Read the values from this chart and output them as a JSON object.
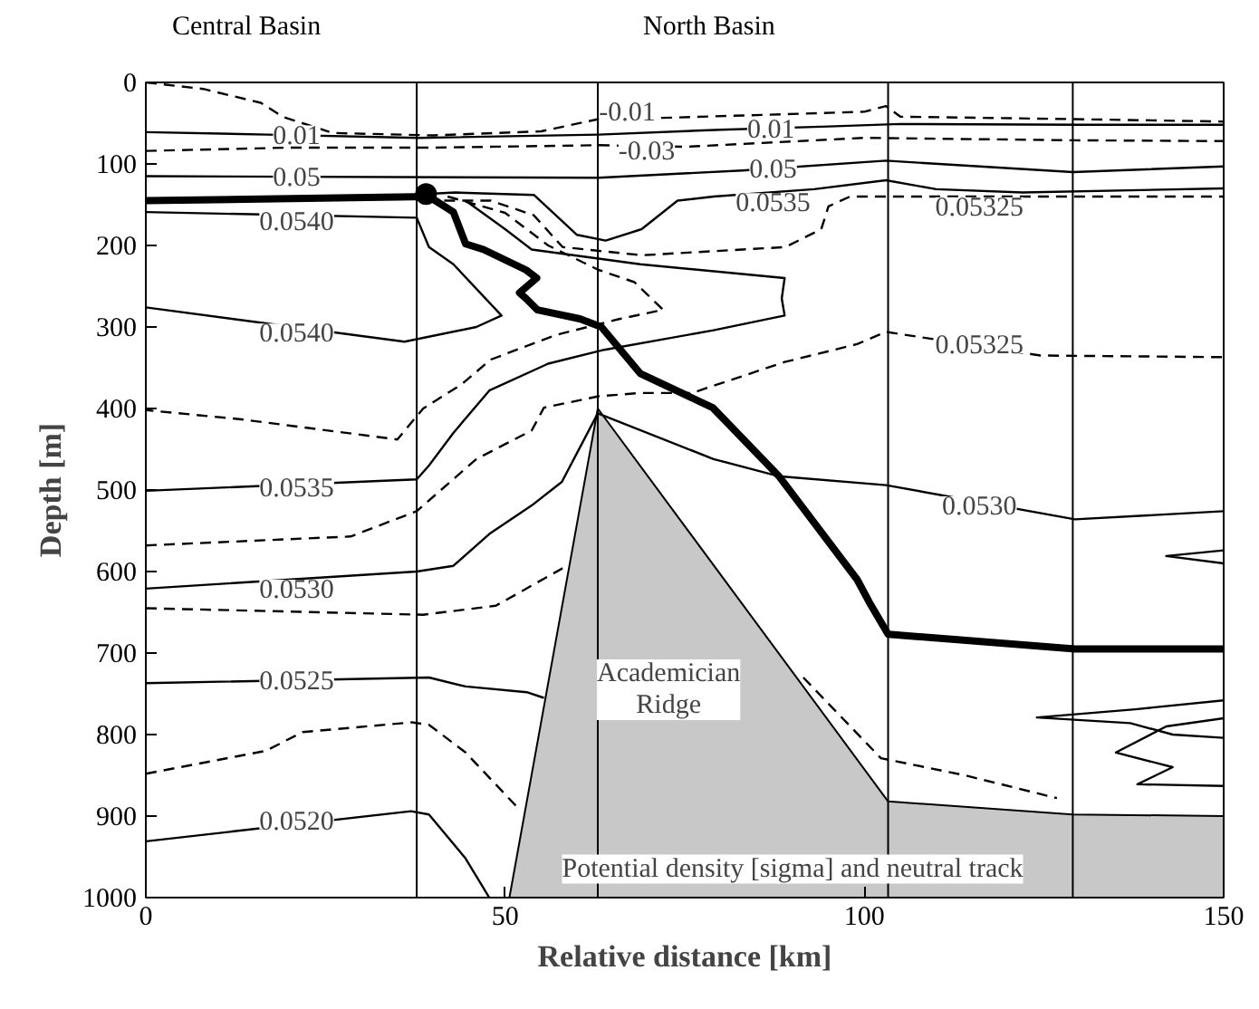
{
  "chart_data": {
    "type": "line",
    "xlabel": "Relative distance [km]",
    "ylabel": "Depth [m]",
    "xlim": [
      0,
      150
    ],
    "xticks": [
      0,
      50,
      100,
      150
    ],
    "ylim": [
      1000,
      0
    ],
    "yticks": [
      0,
      100,
      200,
      300,
      400,
      500,
      600,
      700,
      800,
      900,
      1000
    ],
    "grid": false,
    "ref_lines": [
      {
        "axis": "x",
        "value": 37.7,
        "color": "#000000"
      },
      {
        "axis": "x",
        "value": 62.9,
        "color": "#000000"
      },
      {
        "axis": "x",
        "value": 103.3,
        "color": "#000000"
      },
      {
        "axis": "x",
        "value": 129,
        "color": "#000000"
      }
    ],
    "series": [
      {
        "type": "area",
        "color": "#c8c8c8",
        "x": [
          50.6,
          62.9,
          103.3,
          129,
          150,
          150
        ],
        "values": [
          1000,
          400,
          882,
          898,
          900,
          1000
        ]
      },
      {
        "color": "#000000",
        "line_style": "dashed",
        "x": [
          0,
          8,
          16,
          19,
          26,
          40,
          55,
          63,
          74,
          100,
          103,
          105,
          129,
          150
        ],
        "values": [
          0,
          8,
          25,
          42,
          62,
          65,
          60,
          45,
          43,
          36,
          29,
          42,
          45,
          48
        ]
      },
      {
        "color": "#000000",
        "line_style": "solid",
        "x": [
          0,
          17,
          38,
          63,
          80,
          95,
          105,
          130,
          150
        ],
        "values": [
          61,
          64,
          68,
          64,
          58,
          54,
          51,
          52,
          52
        ]
      },
      {
        "color": "#000000",
        "line_style": "dashed",
        "x": [
          0,
          20,
          40,
          63,
          75,
          100,
          129,
          150
        ],
        "values": [
          84,
          80,
          80,
          77,
          79,
          68,
          71,
          72
        ]
      },
      {
        "color": "#000000",
        "line_style": "solid",
        "x": [
          0,
          63,
          83,
          103,
          129,
          150
        ],
        "values": [
          115,
          117,
          108,
          96,
          110,
          103
        ]
      },
      {
        "color": "#000000",
        "line_style": "solid",
        "x": [
          39,
          43,
          54,
          60,
          64,
          69,
          74,
          79,
          93,
          103,
          110,
          122,
          150
        ],
        "values": [
          137,
          135,
          138,
          187,
          194,
          180,
          145,
          140,
          131,
          120,
          131,
          135,
          130
        ]
      },
      {
        "color": "#000000",
        "line_style": "dashed",
        "x": [
          39,
          48,
          54,
          58,
          69,
          89,
          94,
          95,
          98,
          103,
          124,
          150
        ],
        "values": [
          145,
          145,
          163,
          202,
          212,
          202,
          180,
          152,
          140,
          140,
          140,
          140
        ]
      },
      {
        "color": "#000000",
        "line_style": "solid",
        "x": [
          0,
          37.7,
          39.4,
          42.8,
          49.5,
          46,
          36,
          0
        ],
        "values": [
          159,
          166,
          202,
          223,
          286,
          300,
          318,
          276
        ]
      },
      {
        "color": "#000000",
        "line_style": "solid",
        "x": [
          44.5,
          50,
          53.7,
          68.8,
          88.9,
          88.5,
          88.9,
          79,
          63.8,
          56,
          47.8,
          42.8,
          39.4,
          37.7,
          0
        ],
        "values": [
          145,
          180,
          205,
          223,
          240,
          265,
          286,
          304,
          328,
          345,
          378,
          430,
          470,
          487,
          501
        ]
      },
      {
        "color": "#000000",
        "line_style": "dashed",
        "x": [
          42,
          50,
          56,
          63,
          68,
          72,
          66,
          57,
          48,
          44,
          38.6,
          35,
          13,
          0
        ],
        "values": [
          140,
          160,
          200,
          230,
          245,
          279,
          290,
          310,
          340,
          370,
          400,
          438,
          413,
          402
        ]
      },
      {
        "color": "#000000",
        "line_style": "dashed",
        "x": [
          0,
          28.5,
          37.7,
          46,
          53.7,
          55.4,
          63,
          68.8,
          76,
          88.9,
          99,
          103,
          124.5,
          150
        ],
        "values": [
          568,
          557,
          526,
          462,
          427,
          399,
          385,
          381,
          381,
          343,
          321,
          306,
          335,
          337
        ]
      },
      {
        "color": "#000000",
        "line_style": "solid",
        "x": [
          0,
          37.7,
          42.8,
          47.8,
          53.7,
          57.9,
          62.9,
          79,
          88,
          103,
          129.3,
          150
        ],
        "values": [
          621,
          600,
          593,
          554,
          519,
          490,
          406,
          462,
          483,
          494,
          536,
          526
        ]
      },
      {
        "color": "#000000",
        "line_style": "dashed",
        "x": [
          0,
          38.6,
          48.7,
          58
        ],
        "values": [
          645,
          653,
          642,
          596
        ]
      },
      {
        "color": "#000000",
        "line_style": "dashed",
        "x": [
          91.5,
          102.3,
          114,
          126.8
        ],
        "values": [
          730,
          829,
          850,
          878
        ]
      },
      {
        "color": "#000000",
        "line_style": "solid",
        "x": [
          0,
          39.4,
          44.5,
          53,
          55.4
        ],
        "values": [
          737,
          730,
          741,
          748,
          755
        ]
      },
      {
        "color": "#000000",
        "line_style": "dashed",
        "x": [
          0,
          16.7,
          21.8,
          37,
          39.4,
          44.5,
          52
        ],
        "values": [
          848,
          820,
          797,
          785,
          788,
          822,
          892
        ]
      },
      {
        "color": "#000000",
        "line_style": "solid",
        "x": [
          0,
          36.9,
          39.4,
          44.5,
          47.8
        ],
        "values": [
          931,
          894,
          898,
          952,
          1000
        ]
      },
      {
        "color": "#000000",
        "line_style": "solid",
        "x": [
          150,
          142,
          150
        ],
        "values": [
          574,
          581,
          590
        ]
      },
      {
        "color": "#000000",
        "line_style": "solid",
        "x": [
          150,
          137.7,
          124,
          137,
          142.9,
          150
        ],
        "values": [
          758,
          769,
          779,
          786,
          800,
          804
        ]
      },
      {
        "color": "#000000",
        "line_style": "solid",
        "x": [
          150,
          142,
          135,
          142.9,
          138,
          150
        ],
        "values": [
          780,
          790,
          822,
          840,
          861,
          863
        ]
      },
      {
        "color": "#000000",
        "x": [
          0,
          39.4,
          42.8,
          44.5,
          47,
          52.9,
          54.4,
          52,
          52.9,
          54.5,
          60.4,
          63.4,
          68.8,
          78.9,
          88.1,
          99,
          100.7,
          103.3,
          129.3,
          150
        ],
        "values": [
          145,
          140,
          159,
          198,
          205,
          230,
          240,
          258,
          265,
          279,
          290,
          300,
          357,
          399,
          483,
          610,
          638,
          677,
          695,
          695
        ]
      },
      {
        "type": "scatter",
        "marker": "circle",
        "color": "#000000",
        "x": [
          39
        ],
        "values": [
          137
        ]
      }
    ],
    "annotations": [
      "Central Basin",
      "North Basin",
      "Potential density [sigma] and neutral track",
      "Academician\nRidge",
      {
        "text": "0.01",
        "x": 21,
        "y": 64
      },
      {
        "text": "-0.01",
        "x": 67,
        "y": 36
      },
      {
        "text": "0.01",
        "x": 87,
        "y": 57
      },
      {
        "text": "-0.03",
        "x": 69.7,
        "y": 83
      },
      {
        "text": "0.05",
        "x": 21,
        "y": 116
      },
      {
        "text": "0.05",
        "x": 87.3,
        "y": 106
      },
      {
        "text": "0.0535",
        "x": 87.3,
        "y": 147
      },
      {
        "text": "0.05325",
        "x": 116,
        "y": 152
      },
      {
        "text": "0.0540",
        "x": 21,
        "y": 170
      },
      {
        "text": "0.0540",
        "x": 21,
        "y": 307
      },
      {
        "text": "0.05325",
        "x": 116,
        "y": 321
      },
      {
        "text": "0.0535",
        "x": 21,
        "y": 497
      },
      {
        "text": "0.0530",
        "x": 116,
        "y": 519
      },
      {
        "text": "0.0530",
        "x": 21,
        "y": 621
      },
      {
        "text": "0.0525",
        "x": 21,
        "y": 733
      },
      {
        "text": "0.0520",
        "x": 21,
        "y": 905
      }
    ]
  }
}
